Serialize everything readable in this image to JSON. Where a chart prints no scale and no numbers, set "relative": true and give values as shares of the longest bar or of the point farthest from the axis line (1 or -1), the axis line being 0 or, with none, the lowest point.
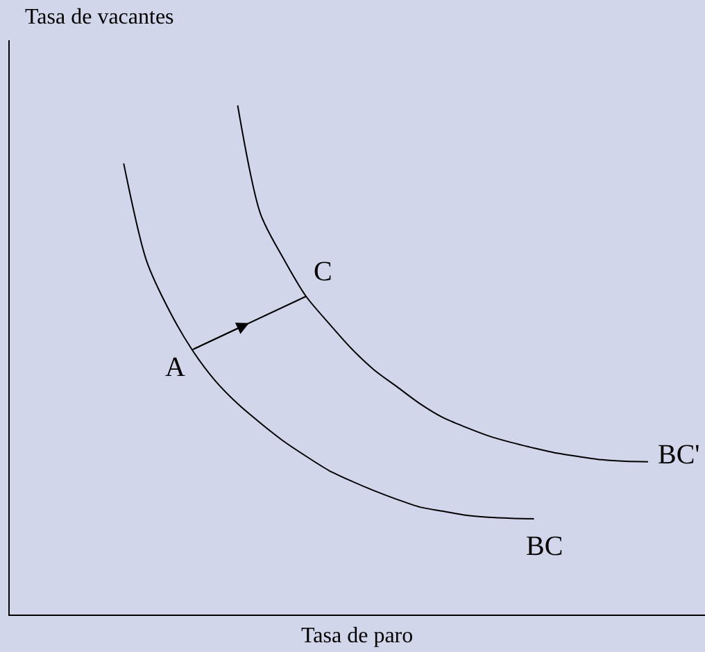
{
  "chart_data": {
    "type": "line",
    "relative": true,
    "xlabel": "Tasa de paro",
    "ylabel": "Tasa de vacantes",
    "categories": [
      null,
      null,
      null,
      null,
      null,
      null,
      null,
      null,
      null,
      null,
      null,
      null,
      null,
      null,
      null,
      null,
      null,
      null,
      null,
      null,
      null,
      null,
      null,
      null,
      null,
      null,
      null,
      null,
      null,
      null,
      null
    ],
    "series": [
      {
        "name": "BC",
        "color": "#000000",
        "values": [
          null,
          null,
          null,
          null,
          null,
          0.886,
          0.695,
          0.597,
          0.52,
          0.46,
          0.414,
          0.376,
          0.341,
          0.311,
          0.283,
          0.262,
          0.243,
          0.226,
          0.211,
          0.203,
          0.195,
          0.191,
          0.189,
          0.188,
          null,
          null,
          null,
          null,
          null,
          null,
          null
        ]
      },
      {
        "name": "BC'",
        "color": "#000000",
        "values": [
          null,
          null,
          null,
          null,
          null,
          null,
          null,
          null,
          null,
          null,
          1.0,
          0.787,
          0.7,
          0.625,
          0.572,
          0.522,
          0.48,
          0.447,
          0.414,
          0.387,
          0.368,
          0.351,
          0.338,
          0.327,
          0.317,
          0.31,
          0.304,
          0.301,
          0.3,
          null,
          null
        ]
      },
      {
        "color": "#000000",
        "values": [
          null,
          null,
          null,
          null,
          null,
          null,
          null,
          null,
          0.52,
          null,
          null,
          null,
          null,
          0.625,
          null,
          null,
          null,
          null,
          null,
          null,
          null,
          null,
          null,
          null,
          null,
          null,
          null,
          null,
          null,
          null,
          null
        ]
      }
    ],
    "annotations": [
      "A",
      "C"
    ]
  }
}
